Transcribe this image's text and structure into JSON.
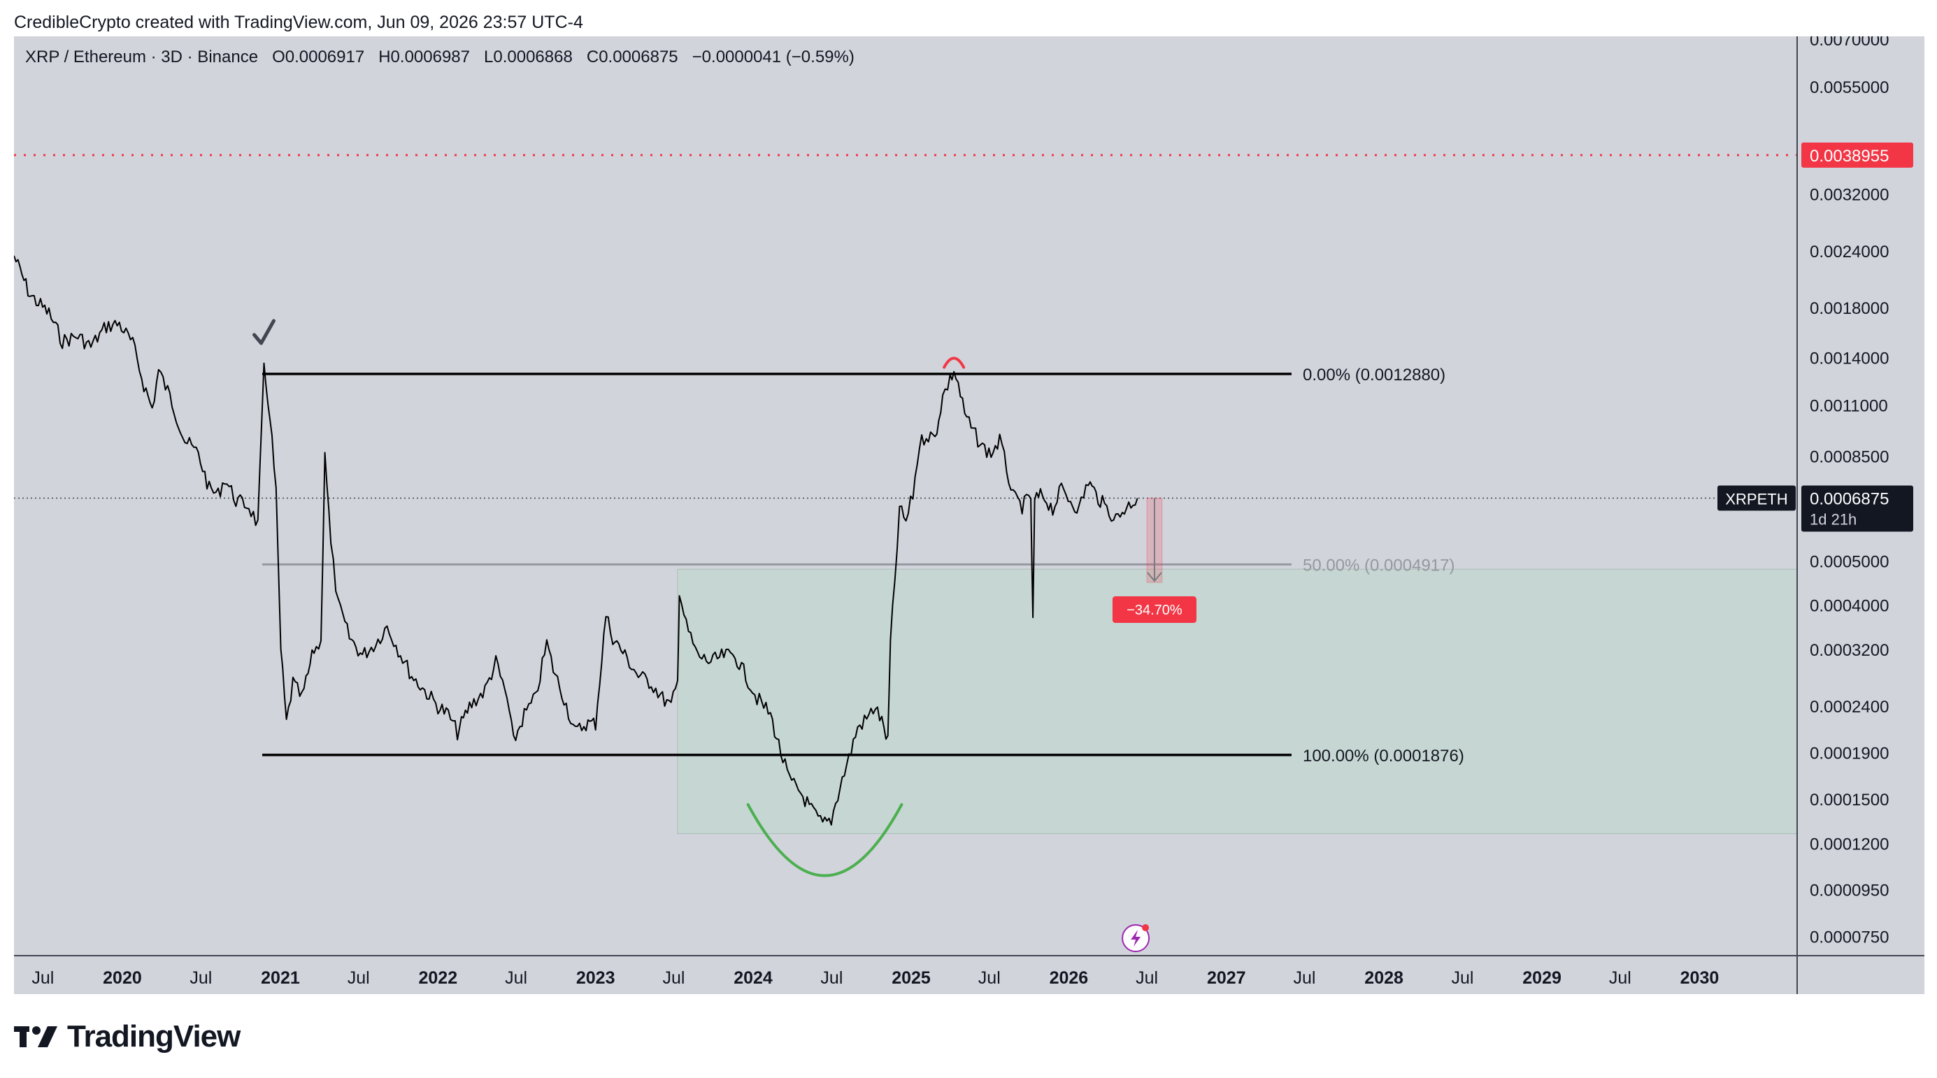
{
  "header": {
    "attribution": "CredibleCrypto created with TradingView.com, Jun 09, 2026 23:57 UTC-4"
  },
  "symbol": {
    "name": "XRP / Ethereum · 3D · Binance",
    "open_label": "O",
    "open": "0.0006917",
    "high_label": "H",
    "high": "0.0006987",
    "low_label": "L",
    "low": "0.0006868",
    "close_label": "C",
    "close": "0.0006875",
    "change": "−0.0000041 (−0.59%)"
  },
  "footer": {
    "brand": "TradingView"
  },
  "colors": {
    "background": "#d2d4dc",
    "price_line": "#000000",
    "alert_red": "#f23645",
    "zone_green": "#c4d6d0",
    "curve_green": "#4caf50",
    "fib_gray": "#9598a1"
  },
  "chart_data": {
    "type": "line",
    "title": "XRP / Ethereum · 3D · Binance",
    "price_scale": "log",
    "ylim": [
      6.8e-05,
      0.0071
    ],
    "xlim": [
      "2019-04-25",
      "2030-08-15"
    ],
    "y_ticks": [
      "0.0070000",
      "0.0055000",
      "0.0032000",
      "0.0024000",
      "0.0018000",
      "0.0014000",
      "0.0011000",
      "0.0008500",
      "0.0005000",
      "0.0004000",
      "0.0003200",
      "0.0002400",
      "0.0001900",
      "0.0001500",
      "0.0001200",
      "0.0000950",
      "0.0000750"
    ],
    "x_ticks": [
      {
        "label": "Jul",
        "date": "2019-07-01",
        "bold": false
      },
      {
        "label": "2020",
        "date": "2020-01-01",
        "bold": true
      },
      {
        "label": "Jul",
        "date": "2020-07-01",
        "bold": false
      },
      {
        "label": "2021",
        "date": "2021-01-01",
        "bold": true
      },
      {
        "label": "Jul",
        "date": "2021-07-01",
        "bold": false
      },
      {
        "label": "2022",
        "date": "2022-01-01",
        "bold": true
      },
      {
        "label": "Jul",
        "date": "2022-07-01",
        "bold": false
      },
      {
        "label": "2023",
        "date": "2023-01-01",
        "bold": true
      },
      {
        "label": "Jul",
        "date": "2023-07-01",
        "bold": false
      },
      {
        "label": "2024",
        "date": "2024-01-01",
        "bold": true
      },
      {
        "label": "Jul",
        "date": "2024-07-01",
        "bold": false
      },
      {
        "label": "2025",
        "date": "2025-01-01",
        "bold": true
      },
      {
        "label": "Jul",
        "date": "2025-07-01",
        "bold": false
      },
      {
        "label": "2026",
        "date": "2026-01-01",
        "bold": true
      },
      {
        "label": "Jul",
        "date": "2026-07-01",
        "bold": false
      },
      {
        "label": "2027",
        "date": "2027-01-01",
        "bold": true
      },
      {
        "label": "Jul",
        "date": "2027-07-01",
        "bold": false
      },
      {
        "label": "2028",
        "date": "2028-01-01",
        "bold": true
      },
      {
        "label": "Jul",
        "date": "2028-07-01",
        "bold": false
      },
      {
        "label": "2029",
        "date": "2029-01-01",
        "bold": true
      },
      {
        "label": "Jul",
        "date": "2029-07-01",
        "bold": false
      },
      {
        "label": "2030",
        "date": "2030-01-01",
        "bold": true
      }
    ],
    "series": [
      {
        "points": [
          [
            "2019-04-25",
            0.00234
          ],
          [
            "2019-06-01",
            0.00192
          ],
          [
            "2019-07-15",
            0.00175
          ],
          [
            "2019-08-15",
            0.00152
          ],
          [
            "2019-09-20",
            0.00156
          ],
          [
            "2019-10-20",
            0.00148
          ],
          [
            "2019-11-25",
            0.00164
          ],
          [
            "2019-12-25",
            0.00166
          ],
          [
            "2020-01-25",
            0.0015
          ],
          [
            "2020-02-20",
            0.00122
          ],
          [
            "2020-03-10",
            0.00108
          ],
          [
            "2020-03-25",
            0.00131
          ],
          [
            "2020-04-20",
            0.00115
          ],
          [
            "2020-05-25",
            0.00092
          ],
          [
            "2020-06-25",
            0.00086
          ],
          [
            "2020-07-20",
            0.00072
          ],
          [
            "2020-08-10",
            0.0007
          ],
          [
            "2020-08-25",
            0.00076
          ],
          [
            "2020-09-20",
            0.00068
          ],
          [
            "2020-10-20",
            0.00066
          ],
          [
            "2020-11-10",
            0.0006
          ],
          [
            "2020-11-24",
            0.00131
          ],
          [
            "2020-12-08",
            0.00105
          ],
          [
            "2020-12-22",
            0.0007
          ],
          [
            "2021-01-02",
            0.00032
          ],
          [
            "2021-01-15",
            0.00022
          ],
          [
            "2021-01-30",
            0.00027
          ],
          [
            "2021-02-20",
            0.00025
          ],
          [
            "2021-03-20",
            0.00032
          ],
          [
            "2021-04-05",
            0.00033
          ],
          [
            "2021-04-14",
            0.00088
          ],
          [
            "2021-04-28",
            0.00054
          ],
          [
            "2021-05-15",
            0.0004
          ],
          [
            "2021-06-10",
            0.00034
          ],
          [
            "2021-07-10",
            0.00031
          ],
          [
            "2021-08-10",
            0.00033
          ],
          [
            "2021-09-05",
            0.00036
          ],
          [
            "2021-10-01",
            0.00032
          ],
          [
            "2021-11-01",
            0.00028
          ],
          [
            "2021-12-01",
            0.00026
          ],
          [
            "2022-01-01",
            0.00024
          ],
          [
            "2022-01-25",
            0.00023
          ],
          [
            "2022-02-15",
            0.00021
          ],
          [
            "2022-03-15",
            0.00024
          ],
          [
            "2022-04-20",
            0.00026
          ],
          [
            "2022-05-15",
            0.0003
          ],
          [
            "2022-06-10",
            0.00025
          ],
          [
            "2022-06-25",
            0.0002
          ],
          [
            "2022-07-20",
            0.00023
          ],
          [
            "2022-08-15",
            0.00025
          ],
          [
            "2022-09-10",
            0.00033
          ],
          [
            "2022-09-25",
            0.00029
          ],
          [
            "2022-10-20",
            0.00025
          ],
          [
            "2022-11-15",
            0.00021
          ],
          [
            "2022-12-10",
            0.00022
          ],
          [
            "2023-01-01",
            0.00022
          ],
          [
            "2023-01-25",
            0.00038
          ],
          [
            "2023-02-10",
            0.00034
          ],
          [
            "2023-03-10",
            0.00031
          ],
          [
            "2023-04-10",
            0.00028
          ],
          [
            "2023-05-10",
            0.00027
          ],
          [
            "2023-06-05",
            0.00025
          ],
          [
            "2023-06-25",
            0.00024
          ],
          [
            "2023-07-10",
            0.00027
          ],
          [
            "2023-07-14",
            0.00043
          ],
          [
            "2023-07-30",
            0.00036
          ],
          [
            "2023-08-25",
            0.00031
          ],
          [
            "2023-09-25",
            0.0003
          ],
          [
            "2023-10-25",
            0.00031
          ],
          [
            "2023-11-20",
            0.00031
          ],
          [
            "2023-12-15",
            0.00028
          ],
          [
            "2024-01-10",
            0.00025
          ],
          [
            "2024-02-10",
            0.00023
          ],
          [
            "2024-03-05",
            0.00019
          ],
          [
            "2024-03-25",
            0.000165
          ],
          [
            "2024-04-20",
            0.000155
          ],
          [
            "2024-05-15",
            0.000142
          ],
          [
            "2024-06-10",
            0.000132
          ],
          [
            "2024-06-30",
            0.000135
          ],
          [
            "2024-07-20",
            0.00016
          ],
          [
            "2024-08-10",
            0.000185
          ],
          [
            "2024-08-30",
            0.000215
          ],
          [
            "2024-09-20",
            0.000225
          ],
          [
            "2024-10-10",
            0.00024
          ],
          [
            "2024-10-30",
            0.000215
          ],
          [
            "2024-11-08",
            0.0002
          ],
          [
            "2024-11-14",
            0.00033
          ],
          [
            "2024-11-24",
            0.00045
          ],
          [
            "2024-12-05",
            0.00065
          ],
          [
            "2024-12-20",
            0.00061
          ],
          [
            "2025-01-05",
            0.0007
          ],
          [
            "2025-01-20",
            0.0009
          ],
          [
            "2025-02-05",
            0.00095
          ],
          [
            "2025-02-25",
            0.00093
          ],
          [
            "2025-03-15",
            0.00115
          ],
          [
            "2025-04-01",
            0.00125
          ],
          [
            "2025-04-10",
            0.00131
          ],
          [
            "2025-04-20",
            0.00122
          ],
          [
            "2025-05-05",
            0.00105
          ],
          [
            "2025-05-25",
            0.00096
          ],
          [
            "2025-06-15",
            0.00089
          ],
          [
            "2025-07-05",
            0.00086
          ],
          [
            "2025-07-25",
            0.00092
          ],
          [
            "2025-08-10",
            0.0008
          ],
          [
            "2025-08-25",
            0.00069
          ],
          [
            "2025-09-15",
            0.00066
          ],
          [
            "2025-10-05",
            0.00069
          ],
          [
            "2025-10-10",
            0.000365
          ],
          [
            "2025-10-14",
            0.00068
          ],
          [
            "2025-11-01",
            0.0007
          ],
          [
            "2025-11-25",
            0.00065
          ],
          [
            "2025-12-15",
            0.00072
          ],
          [
            "2026-01-05",
            0.00068
          ],
          [
            "2026-01-25",
            0.00065
          ],
          [
            "2026-02-15",
            0.00075
          ],
          [
            "2026-03-05",
            0.0007
          ],
          [
            "2026-03-25",
            0.00066
          ],
          [
            "2026-04-20",
            0.00062
          ],
          [
            "2026-05-10",
            0.00065
          ],
          [
            "2026-05-25",
            0.00067
          ],
          [
            "2026-06-09",
            0.0006875
          ]
        ]
      }
    ],
    "annotations": {
      "alert_line": {
        "value": 0.0038955,
        "label": "0.0038955"
      },
      "current_price": {
        "value": 0.0006875,
        "symbol": "XRPETH",
        "price": "0.0006875",
        "countdown": "1d 21h"
      },
      "fib_levels": [
        {
          "level": 0.001288,
          "label": "0.00% (0.0012880)",
          "from": "2020-11-20",
          "to": "2027-06-01"
        },
        {
          "level": 0.0004917,
          "label": "50.00% (0.0004917)",
          "from": "2020-11-20",
          "to": "2027-06-01"
        },
        {
          "level": 0.0001876,
          "label": "100.00% (0.0001876)",
          "from": "2020-11-20",
          "to": "2027-06-01"
        }
      ],
      "zone": {
        "from": "2023-07-10",
        "to": "2030-08-15",
        "top": 0.00048,
        "bottom": 0.000126
      },
      "projection": {
        "from_price": 0.0006875,
        "to_price": 0.000449,
        "date_from": "2026-07-01",
        "date_to": "2026-08-05",
        "label": "−34.70%"
      }
    }
  }
}
